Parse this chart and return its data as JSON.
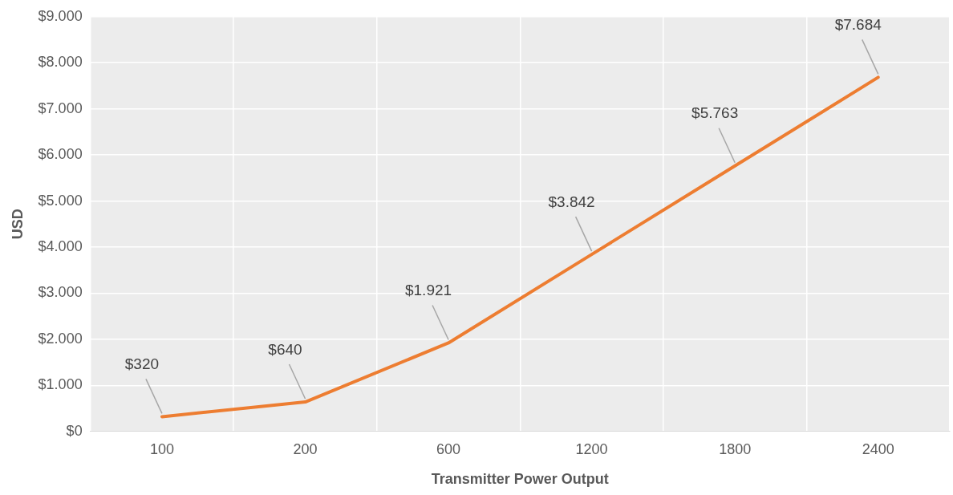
{
  "chart_data": {
    "type": "line",
    "xlabel": "Transmitter Power Output",
    "ylabel": "USD",
    "categories": [
      "100",
      "200",
      "600",
      "1200",
      "1800",
      "2400"
    ],
    "series": [
      {
        "color": "#ed7d31",
        "values": [
          320,
          640,
          1921,
          3842,
          5763,
          7684
        ],
        "value_labels": [
          "$320",
          "$640",
          "$1.921",
          "$3.842",
          "$5.763",
          "$7.684"
        ]
      }
    ],
    "ylim": [
      0,
      9000
    ],
    "yticks": [
      {
        "value": 0,
        "label": "$0"
      },
      {
        "value": 1000,
        "label": "$1.000"
      },
      {
        "value": 2000,
        "label": "$2.000"
      },
      {
        "value": 3000,
        "label": "$3.000"
      },
      {
        "value": 4000,
        "label": "$4.000"
      },
      {
        "value": 5000,
        "label": "$5.000"
      },
      {
        "value": 6000,
        "label": "$6.000"
      },
      {
        "value": 7000,
        "label": "$7.000"
      },
      {
        "value": 8000,
        "label": "$8.000"
      },
      {
        "value": 9000,
        "label": "$9.000"
      }
    ],
    "grid": true,
    "legend": false,
    "marker": "none",
    "line_style": "solid"
  }
}
